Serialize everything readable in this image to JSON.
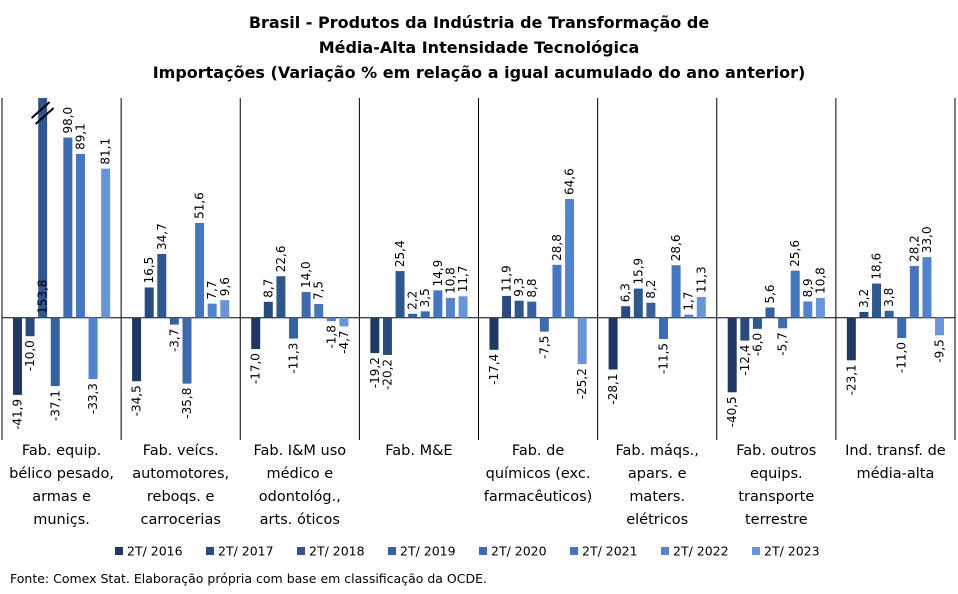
{
  "chart_data": {
    "type": "bar",
    "title": [
      "Brasil - Produtos da Indústria de Transformação de",
      "Média-Alta Intensidade Tecnológica",
      "Importações (Variação % em relação a igual acumulado do ano anterior)"
    ],
    "categories": [
      "Fab. equip. bélico pesado, armas e muniçs.",
      "Fab. veícs. automotores, reboqs. e carrocerias",
      "Fab. I&M uso médico e odontológ., arts. óticos",
      "Fab. M&E",
      "Fab. de químicos (exc. farmacêuticos)",
      "Fab. máqs., apars. e maters. elétricos",
      "Fab. outros equips. transporte terrestre",
      "Ind. transf. de média-alta"
    ],
    "series": [
      {
        "name": "2T/ 2016",
        "color": "#203864",
        "values": [
          -41.9,
          -34.5,
          -17.0,
          -19.2,
          -17.4,
          -28.1,
          -40.5,
          -23.1
        ],
        "value_labels": [
          "-41,9",
          "-34,5",
          "-17,0",
          "-19,2",
          "-17,4",
          "-28,1",
          "-40,5",
          "-23,1"
        ]
      },
      {
        "name": "2T/ 2017",
        "color": "#284a7e",
        "values": [
          -10.0,
          16.5,
          8.7,
          -20.2,
          11.9,
          6.3,
          -12.4,
          3.2
        ],
        "value_labels": [
          "-10,0",
          "16,5",
          "8,7",
          "-20,2",
          "11,9",
          "6,3",
          "-12,4",
          "3,2"
        ]
      },
      {
        "name": "2T/ 2018",
        "color": "#2e5790",
        "values": [
          153.8,
          34.7,
          22.6,
          25.4,
          9.3,
          15.9,
          -6.0,
          18.6
        ],
        "value_labels": [
          "153,8",
          "34,7",
          "22,6",
          "25,4",
          "9,3",
          "15,9",
          "-6,0",
          "18,6"
        ]
      },
      {
        "name": "2T/ 2019",
        "color": "#3660a0",
        "values": [
          -37.1,
          -3.7,
          -11.3,
          2.2,
          8.8,
          8.2,
          5.6,
          3.8
        ],
        "value_labels": [
          "-37,1",
          "-3,7",
          "-11,3",
          "2,2",
          "8,8",
          "8,2",
          "5,6",
          "3,8"
        ]
      },
      {
        "name": "2T/ 2020",
        "color": "#3e6bb0",
        "values": [
          98.0,
          -35.8,
          14.0,
          3.5,
          -7.5,
          -11.5,
          -5.7,
          -11.0
        ],
        "value_labels": [
          "98,0",
          "-35,8",
          "14,0",
          "3,5",
          "-7,5",
          "-11,5",
          "-5,7",
          "-11,0"
        ]
      },
      {
        "name": "2T/ 2021",
        "color": "#4676be",
        "values": [
          89.1,
          51.6,
          7.5,
          14.9,
          28.8,
          28.6,
          25.6,
          28.2
        ],
        "value_labels": [
          "89,1",
          "51,6",
          "7,5",
          "14,9",
          "28,8",
          "28,6",
          "25,6",
          "28,2"
        ]
      },
      {
        "name": "2T/ 2022",
        "color": "#5283cb",
        "values": [
          -33.3,
          7.7,
          -1.8,
          10.8,
          64.6,
          1.7,
          8.9,
          33.0
        ],
        "value_labels": [
          "-33,3",
          "7,7",
          "-1,8",
          "10,8",
          "64,6",
          "1,7",
          "8,9",
          "33,0"
        ]
      },
      {
        "name": "2T/ 2023",
        "color": "#6995d6",
        "values": [
          81.1,
          9.6,
          -4.7,
          11.7,
          -25.2,
          11.3,
          10.8,
          -9.5
        ],
        "value_labels": [
          "81,1",
          "9,6",
          "-4,7",
          "11,7",
          "-25,2",
          "11,3",
          "10,8",
          "-9,5"
        ]
      }
    ],
    "ylim": [
      -61,
      119.5
    ],
    "source": "Fonte: Comex Stat. Elaboração própria com base em classificação da OCDE."
  }
}
